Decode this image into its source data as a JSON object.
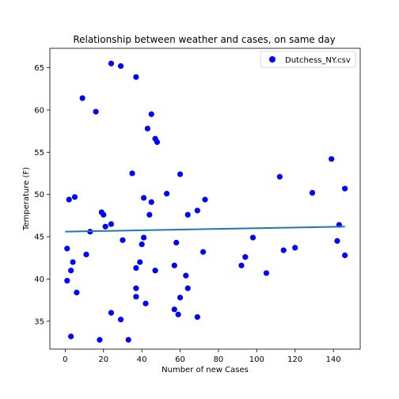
{
  "chart_data": {
    "type": "scatter",
    "title": "Relationship between weather and cases, on same day",
    "xlabel": "Number of new Cases",
    "ylabel": "Temperature (F)",
    "xlim": [
      -8,
      154
    ],
    "ylim": [
      31.7,
      67.3
    ],
    "xticks": [
      0,
      20,
      40,
      60,
      80,
      100,
      120,
      140
    ],
    "yticks": [
      35,
      40,
      45,
      50,
      55,
      60,
      65
    ],
    "legend_position": "top-right",
    "grid": false,
    "colors": {
      "points": "#0000ff",
      "trend": "#1f77b4"
    },
    "series": [
      {
        "name": "Dutchess_NY.csv",
        "marker": "circle",
        "points": [
          [
            2,
            49.4
          ],
          [
            5,
            49.7
          ],
          [
            1,
            43.6
          ],
          [
            4,
            42.0
          ],
          [
            3,
            41.0
          ],
          [
            1,
            39.8
          ],
          [
            6,
            38.4
          ],
          [
            3,
            33.2
          ],
          [
            9,
            61.4
          ],
          [
            11,
            42.9
          ],
          [
            13,
            45.6
          ],
          [
            16,
            59.8
          ],
          [
            18,
            32.8
          ],
          [
            19,
            47.9
          ],
          [
            20,
            47.6
          ],
          [
            21,
            46.2
          ],
          [
            24,
            46.5
          ],
          [
            24,
            36.0
          ],
          [
            24,
            65.5
          ],
          [
            29,
            65.2
          ],
          [
            29,
            35.2
          ],
          [
            30,
            44.6
          ],
          [
            33,
            32.8
          ],
          [
            35,
            52.5
          ],
          [
            37,
            63.9
          ],
          [
            37,
            41.3
          ],
          [
            37,
            38.9
          ],
          [
            37,
            37.9
          ],
          [
            39,
            42.0
          ],
          [
            40,
            44.1
          ],
          [
            41,
            49.6
          ],
          [
            41,
            44.9
          ],
          [
            42,
            37.1
          ],
          [
            43,
            57.8
          ],
          [
            44,
            47.6
          ],
          [
            45,
            59.5
          ],
          [
            45,
            49.1
          ],
          [
            47,
            56.6
          ],
          [
            47,
            41.0
          ],
          [
            48,
            56.2
          ],
          [
            53,
            50.1
          ],
          [
            57,
            41.6
          ],
          [
            57,
            36.4
          ],
          [
            58,
            44.3
          ],
          [
            59,
            35.8
          ],
          [
            60,
            52.4
          ],
          [
            60,
            37.8
          ],
          [
            63,
            40.4
          ],
          [
            64,
            47.6
          ],
          [
            64,
            38.9
          ],
          [
            69,
            48.1
          ],
          [
            69,
            35.5
          ],
          [
            72,
            43.2
          ],
          [
            73,
            49.4
          ],
          [
            92,
            41.6
          ],
          [
            94,
            42.6
          ],
          [
            98,
            44.9
          ],
          [
            105,
            40.7
          ],
          [
            112,
            52.1
          ],
          [
            114,
            43.4
          ],
          [
            120,
            43.7
          ],
          [
            129,
            50.2
          ],
          [
            139,
            54.2
          ],
          [
            142,
            44.5
          ],
          [
            143,
            46.4
          ],
          [
            146,
            50.7
          ],
          [
            146,
            42.8
          ]
        ]
      }
    ],
    "trend_line": {
      "x": [
        0,
        146
      ],
      "y": [
        45.6,
        46.2
      ]
    }
  }
}
